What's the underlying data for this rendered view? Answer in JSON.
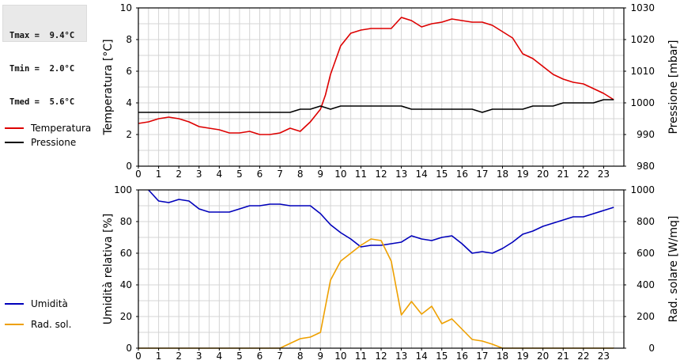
{
  "stats": {
    "tmax": "Tmax =  9.4°C",
    "tmin": "Tmin =  2.0°C",
    "tmed": "Tmed =  5.6°C"
  },
  "colors": {
    "temperature": "#dd0000",
    "pressure": "#000000",
    "humidity": "#0000bb",
    "radiation": "#eea000",
    "grid": "#d4d4d4"
  },
  "chart_data": [
    {
      "type": "line",
      "x_ticks": [
        "0",
        "1",
        "2",
        "3",
        "4",
        "5",
        "6",
        "7",
        "8",
        "9",
        "10",
        "11",
        "12",
        "13",
        "14",
        "15",
        "16",
        "17",
        "18",
        "19",
        "20",
        "21",
        "22",
        "23"
      ],
      "xlim": [
        0,
        24
      ],
      "ylabel": "Temperatura [°C]",
      "ylim": [
        0,
        10
      ],
      "y_ticks": [
        "0",
        "2",
        "4",
        "6",
        "8",
        "10"
      ],
      "ylabel_right": "Pressione [mbar]",
      "ylim_right": [
        980,
        1030
      ],
      "y_ticks_right": [
        "980",
        "990",
        "1000",
        "1010",
        "1020",
        "1030"
      ],
      "grid": true,
      "legend": "left",
      "series": [
        {
          "name": "Temperatura",
          "axis": "left",
          "color": "#dd0000",
          "x": [
            0,
            0.5,
            1,
            1.5,
            2,
            2.5,
            3,
            3.5,
            4,
            4.5,
            5,
            5.5,
            6,
            6.5,
            7,
            7.5,
            8,
            8.5,
            9,
            9.25,
            9.5,
            10,
            10.5,
            11,
            11.5,
            12,
            12.5,
            13,
            13.5,
            14,
            14.5,
            15,
            15.5,
            16,
            16.5,
            17,
            17.5,
            18,
            18.5,
            19,
            19.5,
            20,
            20.5,
            21,
            21.5,
            22,
            22.5,
            23,
            23.5
          ],
          "values": [
            2.7,
            2.8,
            3.0,
            3.1,
            3.0,
            2.8,
            2.5,
            2.4,
            2.3,
            2.1,
            2.1,
            2.2,
            2.0,
            2.0,
            2.1,
            2.4,
            2.2,
            2.8,
            3.6,
            4.5,
            5.8,
            7.6,
            8.4,
            8.6,
            8.7,
            8.7,
            8.7,
            9.4,
            9.2,
            8.8,
            9.0,
            9.1,
            9.3,
            9.2,
            9.1,
            9.1,
            8.9,
            8.5,
            8.1,
            7.1,
            6.8,
            6.3,
            5.8,
            5.5,
            5.3,
            5.2,
            4.9,
            4.6,
            4.2
          ]
        },
        {
          "name": "Pressione",
          "axis": "right",
          "color": "#000000",
          "x": [
            0,
            7.5,
            8,
            8.5,
            9,
            9.5,
            10,
            13,
            13.5,
            16.5,
            17,
            17.5,
            19,
            19.5,
            20.5,
            21,
            22.5,
            23,
            23.5
          ],
          "values": [
            997,
            997,
            998,
            998,
            999,
            998,
            999,
            999,
            998,
            998,
            997,
            998,
            998,
            999,
            999,
            1000,
            1000,
            1001,
            1001
          ]
        }
      ]
    },
    {
      "type": "line",
      "x_ticks": [
        "0",
        "1",
        "2",
        "3",
        "4",
        "5",
        "6",
        "7",
        "8",
        "9",
        "10",
        "11",
        "12",
        "13",
        "14",
        "15",
        "16",
        "17",
        "18",
        "19",
        "20",
        "21",
        "22",
        "23"
      ],
      "xlim": [
        0,
        24
      ],
      "ylabel": "Umidità relativa [%]",
      "ylim": [
        0,
        100
      ],
      "y_ticks": [
        "0",
        "20",
        "40",
        "60",
        "80",
        "100"
      ],
      "ylabel_right": "Rad. solare [W/mq]",
      "ylim_right": [
        0,
        1000
      ],
      "y_ticks_right": [
        "0",
        "200",
        "400",
        "600",
        "800",
        "1000"
      ],
      "grid": true,
      "legend": "left",
      "series": [
        {
          "name": "Umidità",
          "axis": "left",
          "color": "#0000bb",
          "x": [
            0.5,
            1,
            1.5,
            2,
            2.5,
            3,
            3.5,
            4,
            4.5,
            5,
            5.5,
            6,
            6.5,
            7,
            7.5,
            8,
            8.5,
            9,
            9.5,
            10,
            10.5,
            11,
            11.5,
            12,
            12.5,
            13,
            13.5,
            14,
            14.5,
            15,
            15.5,
            16,
            16.5,
            17,
            17.5,
            18,
            18.5,
            19,
            19.5,
            20,
            20.5,
            21,
            21.5,
            22,
            22.5,
            23,
            23.5
          ],
          "values": [
            100,
            93,
            92,
            94,
            93,
            88,
            86,
            86,
            86,
            88,
            90,
            90,
            91,
            91,
            90,
            90,
            90,
            85,
            78,
            73,
            69,
            64,
            65,
            65,
            66,
            67,
            71,
            69,
            68,
            70,
            71,
            66,
            60,
            61,
            60,
            63,
            67,
            72,
            74,
            77,
            79,
            81,
            83,
            83,
            85,
            87,
            89
          ]
        },
        {
          "name": "Rad. sol.",
          "axis": "right",
          "color": "#eea000",
          "x": [
            0,
            7,
            7.5,
            8,
            8.5,
            9,
            9.5,
            10,
            10.5,
            11,
            11.5,
            12,
            12.5,
            13,
            13.5,
            14,
            14.5,
            15,
            15.5,
            16,
            16.5,
            17,
            17.5,
            18,
            23.5
          ],
          "values": [
            0,
            0,
            30,
            60,
            70,
            100,
            430,
            550,
            600,
            650,
            690,
            680,
            550,
            210,
            295,
            215,
            265,
            155,
            185,
            120,
            55,
            45,
            25,
            0,
            0
          ]
        }
      ]
    }
  ]
}
